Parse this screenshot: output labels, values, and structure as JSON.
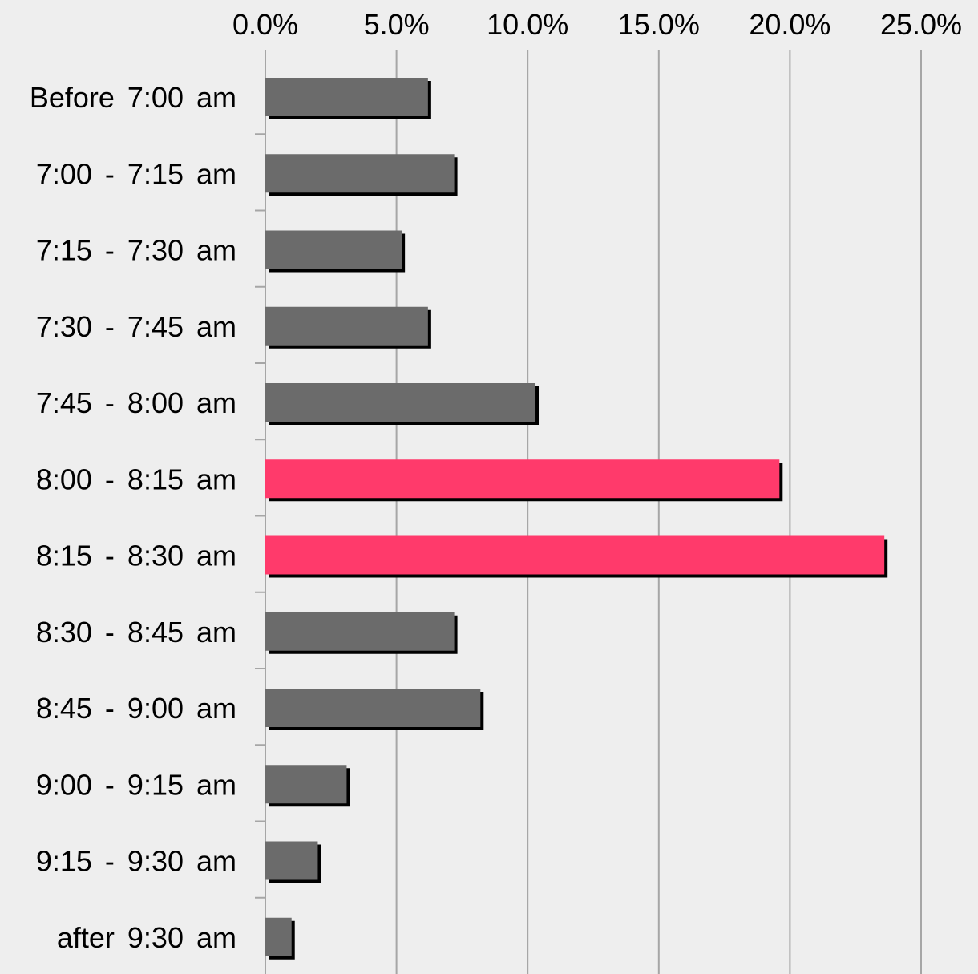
{
  "chart_data": {
    "type": "bar",
    "orientation": "horizontal",
    "categories": [
      "Before 7:00 am",
      "7:00 - 7:15 am",
      "7:15 - 7:30 am",
      "7:30 - 7:45 am",
      "7:45 - 8:00 am",
      "8:00 - 8:15 am",
      "8:15 - 8:30 am",
      "8:30 - 8:45 am",
      "8:45 - 9:00 am",
      "9:00 - 9:15 am",
      "9:15 - 9:30 am",
      "after 9:30 am"
    ],
    "values": [
      6.2,
      7.2,
      5.2,
      6.2,
      10.3,
      19.6,
      23.6,
      7.2,
      8.2,
      3.1,
      2.0,
      1.0
    ],
    "highlighted": [
      false,
      false,
      false,
      false,
      false,
      true,
      true,
      false,
      false,
      false,
      false,
      false
    ],
    "xlim": [
      0,
      25
    ],
    "x_ticks": [
      0,
      5,
      10,
      15,
      20,
      25
    ],
    "x_tick_labels": [
      "0.0%",
      "5.0%",
      "10.0%",
      "15.0%",
      "20.0%",
      "25.0%"
    ],
    "x_axis_position": "top",
    "grid": "vertical",
    "title": "",
    "xlabel": "",
    "ylabel": "",
    "colors": {
      "background": "#eeeeee",
      "bar": "#6b6b6b",
      "bar_highlight": "#ff3a6b",
      "shadow": "#000000",
      "grid": "#a6a6a6"
    }
  }
}
